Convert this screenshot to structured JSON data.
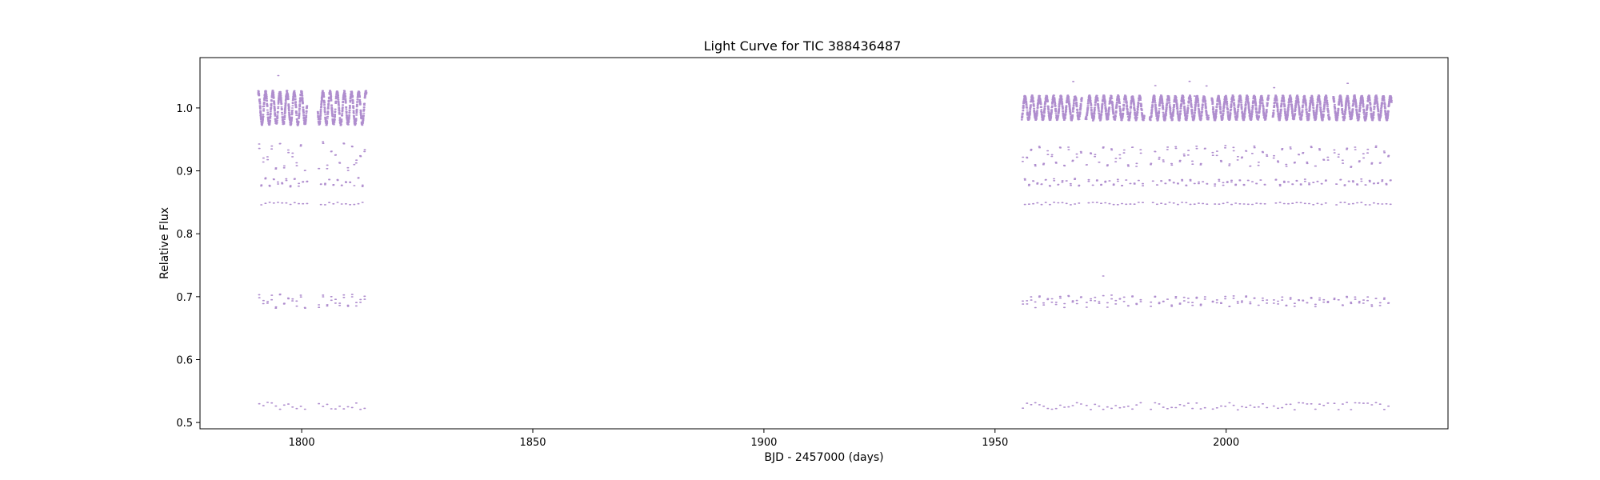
{
  "chart_data": {
    "type": "scatter",
    "title": "Light Curve for TIC 388436487",
    "xlabel": "BJD - 2457000 (days)",
    "ylabel": "Relative Flux",
    "xlim": [
      1778,
      2048
    ],
    "ylim": [
      0.49,
      1.08
    ],
    "x_ticks": [
      1800,
      1850,
      1900,
      1950,
      2000
    ],
    "y_ticks": [
      0.5,
      0.6,
      0.7,
      0.8,
      0.9,
      1.0
    ],
    "grid": false,
    "legend": "none",
    "point_color": "#9467bd",
    "baseline_flux": 1.0,
    "segments": [
      {
        "start": 1790.6,
        "end": 1801.2
      },
      {
        "start": 1803.5,
        "end": 1814.0
      },
      {
        "start": 1955.8,
        "end": 1968.8
      },
      {
        "start": 1969.6,
        "end": 1982.3
      },
      {
        "start": 1983.5,
        "end": 1996.2
      },
      {
        "start": 1996.9,
        "end": 2009.2
      },
      {
        "start": 2010.1,
        "end": 2022.4
      },
      {
        "start": 2023.2,
        "end": 2035.8
      }
    ],
    "features": {
      "out_of_eclipse_variation_min": 0.98,
      "out_of_eclipse_variation_max": 1.03,
      "secondary_level": 0.85,
      "primary_eclipse_min": 0.52,
      "max_flux_outlier": 1.055
    }
  }
}
